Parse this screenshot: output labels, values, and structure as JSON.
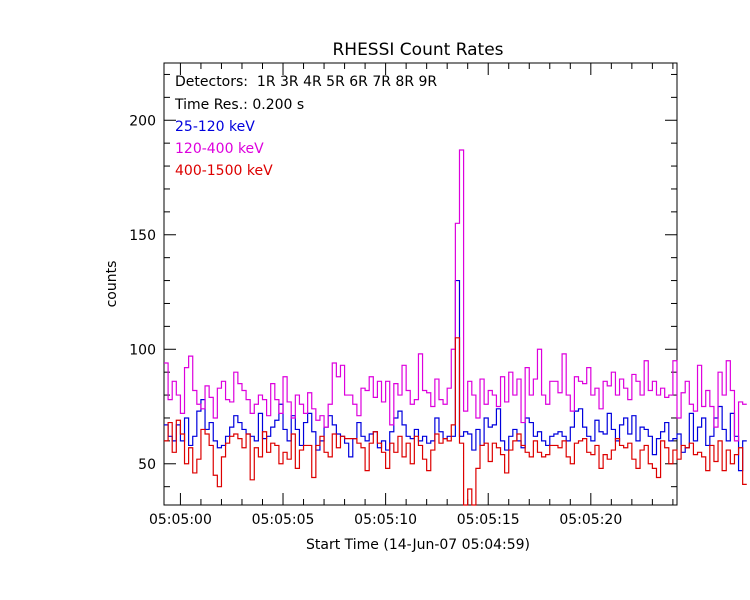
{
  "chart_data": {
    "type": "line",
    "title": "RHESSI Count Rates",
    "xlabel": "Start Time (14-Jun-07 05:04:59)",
    "ylabel": "counts",
    "xlim": [
      "05:04:59.2",
      "05:05:24.2"
    ],
    "ylim": [
      32,
      225
    ],
    "time_resolution_s": 0.2,
    "x_start": "05:04:59.2",
    "x_ticks": [
      "05:05:00",
      "05:05:05",
      "05:05:10",
      "05:05:15",
      "05:05:20"
    ],
    "y_ticks": [
      50,
      100,
      150,
      200
    ],
    "annotations": {
      "detectors": "Detectors:  1R 3R 4R 5R 6R 7R 8R 9R",
      "time_res": "Time Res.: 0.200 s"
    },
    "series": [
      {
        "name": "25-120 keV",
        "color": "#0000dd",
        "values": [
          67,
          62,
          60,
          67,
          60,
          70,
          58,
          62,
          73,
          78,
          65,
          68,
          60,
          57,
          58,
          62,
          66,
          71,
          68,
          65,
          63,
          62,
          60,
          72,
          61,
          62,
          66,
          69,
          76,
          65,
          60,
          71,
          65,
          58,
          68,
          72,
          64,
          56,
          60,
          66,
          71,
          67,
          63,
          62,
          59,
          53,
          61,
          68,
          62,
          60,
          63,
          64,
          57,
          60,
          56,
          64,
          70,
          73,
          67,
          62,
          61,
          65,
          60,
          62,
          59,
          60,
          70,
          64,
          61,
          62,
          62,
          130,
          62,
          64,
          63,
          56,
          65,
          58,
          70,
          66,
          67,
          74,
          60,
          56,
          62,
          65,
          60,
          57,
          70,
          68,
          62,
          64,
          60,
          58,
          62,
          63,
          64,
          62,
          60,
          66,
          73,
          74,
          66,
          62,
          60,
          69,
          64,
          63,
          72,
          65,
          60,
          67,
          70,
          63,
          71,
          60,
          66,
          65,
          62,
          54,
          61,
          64,
          68,
          60,
          61,
          63,
          55,
          57,
          72,
          60,
          66,
          70,
          58,
          62,
          70,
          75,
          65,
          60,
          72,
          62,
          47,
          60
        ]
      },
      {
        "name": "120-400 keV",
        "color": "#dd00dd",
        "values": [
          94,
          78,
          86,
          80,
          72,
          92,
          97,
          82,
          76,
          74,
          84,
          79,
          70,
          83,
          86,
          78,
          77,
          90,
          85,
          82,
          78,
          72,
          76,
          80,
          78,
          71,
          85,
          78,
          72,
          88,
          77,
          70,
          80,
          76,
          72,
          81,
          74,
          69,
          71,
          66,
          76,
          94,
          88,
          93,
          80,
          80,
          76,
          71,
          83,
          82,
          88,
          79,
          86,
          77,
          86,
          67,
          85,
          80,
          93,
          82,
          76,
          78,
          98,
          82,
          81,
          75,
          87,
          78,
          76,
          83,
          100,
          155,
          187,
          73,
          86,
          80,
          70,
          87,
          76,
          82,
          80,
          75,
          88,
          77,
          90,
          80,
          87,
          68,
          92,
          80,
          87,
          100,
          80,
          76,
          86,
          86,
          81,
          98,
          80,
          73,
          88,
          86,
          85,
          92,
          80,
          83,
          74,
          86,
          84,
          90,
          80,
          87,
          83,
          78,
          89,
          86,
          80,
          95,
          82,
          86,
          80,
          83,
          79,
          80,
          95,
          70,
          81,
          86,
          76,
          73,
          93,
          75,
          82,
          75,
          66,
          90,
          80,
          95,
          82,
          60,
          77,
          76
        ]
      },
      {
        "name": "400-1500 keV",
        "color": "#dd0000",
        "values": [
          60,
          68,
          55,
          69,
          63,
          50,
          57,
          46,
          52,
          65,
          63,
          58,
          45,
          40,
          53,
          59,
          62,
          63,
          61,
          57,
          63,
          43,
          57,
          53,
          64,
          55,
          59,
          58,
          50,
          55,
          52,
          63,
          48,
          56,
          58,
          58,
          44,
          58,
          62,
          55,
          53,
          63,
          57,
          62,
          61,
          61,
          61,
          59,
          57,
          47,
          59,
          64,
          59,
          55,
          48,
          59,
          55,
          62,
          53,
          59,
          50,
          62,
          58,
          52,
          47,
          56,
          63,
          59,
          61,
          60,
          67,
          105,
          59,
          32,
          39,
          32,
          48,
          58,
          59,
          51,
          59,
          57,
          54,
          46,
          56,
          60,
          63,
          58,
          55,
          53,
          60,
          55,
          53,
          54,
          58,
          58,
          57,
          60,
          53,
          50,
          59,
          60,
          61,
          55,
          54,
          58,
          48,
          54,
          52,
          56,
          61,
          58,
          57,
          59,
          52,
          48,
          56,
          58,
          50,
          48,
          44,
          60,
          57,
          50,
          56,
          52,
          58,
          57,
          59,
          54,
          55,
          53,
          47,
          58,
          51,
          60,
          47,
          56,
          50,
          54,
          57,
          41
        ]
      }
    ]
  }
}
